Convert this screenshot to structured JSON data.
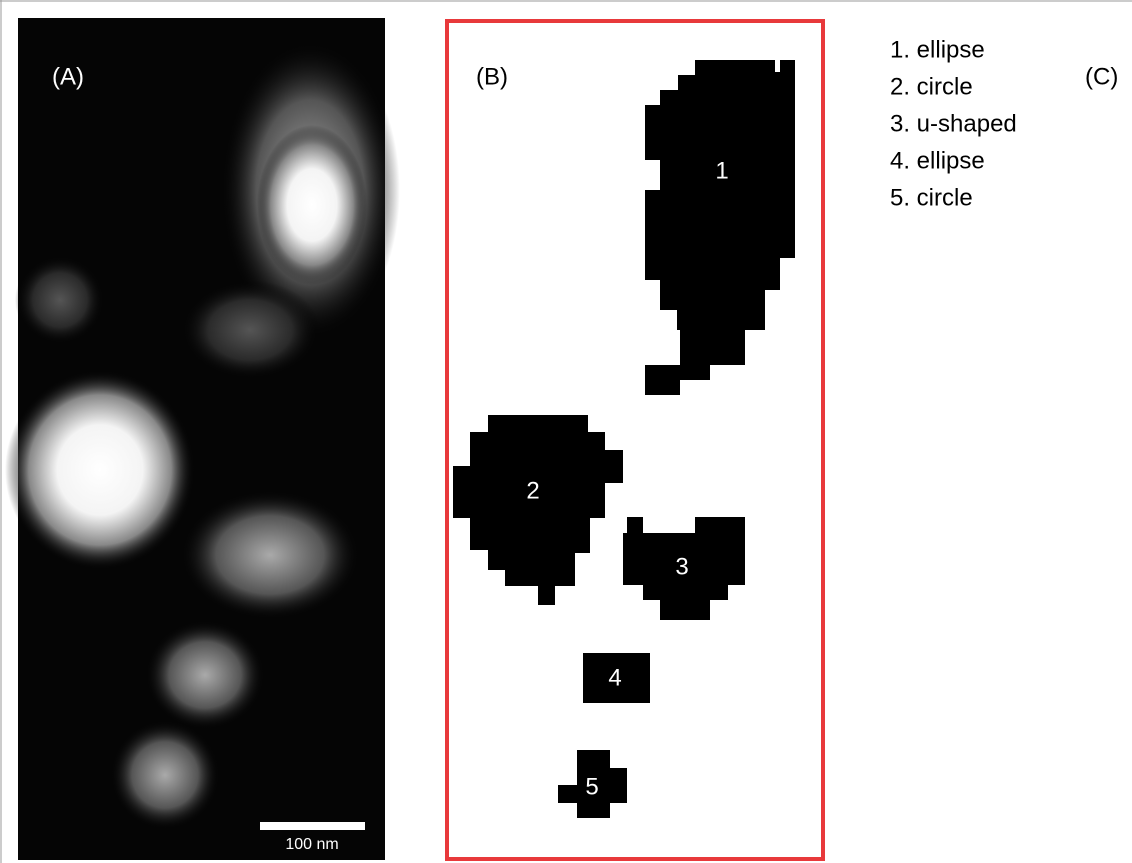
{
  "panels": {
    "a": {
      "label": "(A)",
      "scale_bar": "100 nm"
    },
    "b": {
      "label": "(B)",
      "objects": [
        {
          "id": "1"
        },
        {
          "id": "2"
        },
        {
          "id": "3"
        },
        {
          "id": "4"
        },
        {
          "id": "5"
        }
      ]
    },
    "c": {
      "label": "(C)",
      "items": [
        "1. ellipse",
        "2. circle",
        "3. u-shaped",
        "4. ellipse",
        "5. circle"
      ]
    }
  }
}
